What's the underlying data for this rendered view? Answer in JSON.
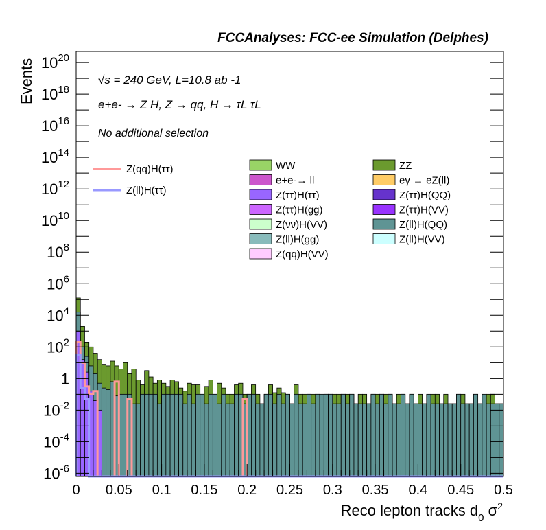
{
  "header": "FCCAnalyses: FCC-ee Simulation (Delphes)",
  "annotations": {
    "energy_lumi": "√s = 240 GeV, L=10.8 ab -1",
    "process": "e+e- → Z H, Z → qq, H → τL τL",
    "selection": "No additional selection"
  },
  "colors": {
    "WW": "#99d466",
    "ZZ": "#6b9a2e",
    "ee_ll": "#cc55cc",
    "egamma": "#ffcc66",
    "ztautau_htautau": "#9966ff",
    "ztautau_hqq": "#6633cc",
    "ztautau_hgg": "#cc66ff",
    "ztautau_hvv": "#9933ff",
    "znunu_hvv": "#ccffcc",
    "zll_hqq": "#5f9494",
    "zll_hgg": "#88bbbb",
    "zll_hvv": "#ccffff",
    "zqq_hvv": "#ffccff",
    "sig_zqq": "#ff9999",
    "sig_zll": "#9999ff"
  },
  "chart_data": {
    "type": "bar",
    "title": "",
    "xlabel": "Reco lepton tracks d0 σ2",
    "ylabel": "Events",
    "xlim": [
      0,
      0.5
    ],
    "ylim_log10": [
      -6.2,
      20.7
    ],
    "yscale": "log",
    "bin_width": 0.005,
    "x_ticks": [
      "0",
      "0.05",
      "0.1",
      "0.15",
      "0.2",
      "0.25",
      "0.3",
      "0.35",
      "0.4",
      "0.45",
      "0.5"
    ],
    "y_ticks": [
      {
        "base": "10",
        "exp": "20",
        "v": 20
      },
      {
        "base": "10",
        "exp": "18",
        "v": 18
      },
      {
        "base": "10",
        "exp": "16",
        "v": 16
      },
      {
        "base": "10",
        "exp": "14",
        "v": 14
      },
      {
        "base": "10",
        "exp": "12",
        "v": 12
      },
      {
        "base": "10",
        "exp": "10",
        "v": 10
      },
      {
        "base": "10",
        "exp": "8",
        "v": 8
      },
      {
        "base": "10",
        "exp": "6",
        "v": 6
      },
      {
        "base": "10",
        "exp": "4",
        "v": 4
      },
      {
        "base": "10",
        "exp": "2",
        "v": 2
      },
      {
        "base": "1",
        "exp": "",
        "v": 0
      },
      {
        "base": "10",
        "exp": "-2",
        "v": -2
      },
      {
        "base": "10",
        "exp": "-4",
        "v": -4
      },
      {
        "base": "10",
        "exp": "-6",
        "v": -6
      }
    ],
    "legend_background": [
      {
        "label": "WW",
        "color_key": "WW"
      },
      {
        "label": "ZZ",
        "color_key": "ZZ"
      },
      {
        "label": "e+e-→ ll",
        "color_key": "ee_ll"
      },
      {
        "label": "eγ → eZ(ll)",
        "color_key": "egamma"
      },
      {
        "label": "Z(ττ)H(ττ)",
        "color_key": "ztautau_htautau"
      },
      {
        "label": "Z(ττ)H(QQ)",
        "color_key": "ztautau_hqq"
      },
      {
        "label": "Z(ττ)H(gg)",
        "color_key": "ztautau_hgg"
      },
      {
        "label": "Z(ττ)H(VV)",
        "color_key": "ztautau_hvv"
      },
      {
        "label": "Z(νν)H(VV)",
        "color_key": "znunu_hvv"
      },
      {
        "label": "Z(ll)H(QQ)",
        "color_key": "zll_hqq"
      },
      {
        "label": "Z(ll)H(gg)",
        "color_key": "zll_hgg"
      },
      {
        "label": "Z(ll)H(VV)",
        "color_key": "zll_hvv"
      },
      {
        "label": "Z(qq)H(VV)",
        "color_key": "zqq_hvv"
      }
    ],
    "legend_signal": [
      {
        "label": "Z(qq)H(ττ)",
        "color_key": "sig_zqq"
      },
      {
        "label": "Z(ll)H(ττ)",
        "color_key": "sig_zll"
      }
    ],
    "stack_total_log10": [
      5.1,
      3.3,
      2.3,
      2.0,
      1.6,
      1.2,
      0.9,
      0.8,
      1.1,
      0.8,
      0.6,
      1.0,
      0.3,
      0.6,
      -0.1,
      -0.4,
      0.5,
      0.1,
      -0.3,
      -0.1,
      -0.3,
      -0.5,
      -0.1,
      -0.2,
      -0.6,
      -0.8,
      -0.3,
      -0.4,
      -0.4,
      -1.0,
      -0.5,
      -0.1,
      -1.0,
      -0.3,
      -0.6,
      -1.0,
      -1.0,
      -0.4,
      -0.3,
      -1.0,
      -1.0,
      -0.4,
      -1.0,
      -1.6,
      -1.0,
      -0.4,
      -0.9,
      -0.6,
      -0.9,
      -1.0,
      -1.6,
      -0.4,
      -1.0,
      -1.0,
      -1.0,
      -1.0,
      -1.0,
      -1.6,
      -1.0,
      -1.0,
      -1.0,
      -1.0,
      -1.0,
      -1.0,
      -1.0,
      -1.6,
      -1.0,
      -1.0,
      -1.6,
      -1.0,
      -1.0,
      -1.0,
      -1.0,
      -1.0,
      -1.6,
      -1.0,
      -1.0,
      -1.6,
      -1.0,
      -1.6,
      -1.0,
      -1.6,
      -1.6,
      -1.0,
      -1.0,
      -1.6,
      -1.0,
      -1.6,
      -1.6,
      -1.0,
      -1.0,
      -1.6,
      -1.6,
      -1.0,
      -1.6,
      -1.6,
      -1.0,
      -1.0,
      -1.6,
      -1.6
    ],
    "zll_hqq_log10": [
      4.2,
      2.0,
      1.4,
      0.8,
      0.3,
      -0.3,
      -0.6,
      -0.7,
      -0.2,
      -1.1,
      -1.0,
      -1.0,
      -1.0,
      -1.6,
      -1.6,
      -1.0,
      -1.0,
      -1.0,
      -1.0,
      -1.6,
      -1.0,
      -1.0,
      -1.0,
      -1.0,
      -1.0,
      -1.6,
      -1.0,
      -1.6,
      -1.0,
      -1.0,
      -1.6,
      -1.0,
      -1.0,
      -1.6,
      -1.0,
      -1.6,
      -1.6,
      -1.0,
      -1.0,
      -1.6,
      -1.0,
      -1.0,
      -1.6,
      -1.6,
      -1.0,
      -1.0,
      -1.6,
      -1.0,
      -1.6,
      -1.0,
      -1.6,
      -1.0,
      -1.6,
      -1.6,
      -1.0,
      -1.6,
      -1.0,
      -1.0,
      -1.0,
      -1.0,
      -1.6,
      -1.6,
      -1.0,
      -1.6,
      -1.0,
      -1.6,
      -1.6,
      -1.6,
      -1.6,
      -1.0,
      -1.6,
      -1.0,
      -1.6,
      -1.0,
      -1.6,
      -1.6,
      -1.0,
      -1.6,
      -1.0,
      -1.6,
      -1.6,
      -1.6,
      -1.0,
      -1.6,
      -1.6,
      -1.6,
      -1.6,
      -1.6,
      -1.6,
      -1.0,
      -1.6,
      -1.6,
      -1.6,
      -1.0,
      -1.6,
      -1.0,
      -1.6,
      -1.6,
      -1.6,
      -1.6
    ],
    "ztautau_log10": [
      3.0,
      1.2,
      0.4,
      -0.8,
      -1.4,
      -2.0,
      -6.3,
      -6.3,
      -6.3,
      -6.3,
      -6.3,
      -6.3,
      -6.3,
      -6.3,
      -6.3,
      -6.3,
      -6.3,
      -6.3,
      -6.3,
      -6.3,
      -6.3,
      -6.3,
      -6.3,
      -6.3,
      -6.3,
      -6.3,
      -6.3,
      -6.3,
      -6.3,
      -6.3,
      -6.3,
      -6.3,
      -6.3,
      -6.3,
      -6.3,
      -6.3,
      -6.3,
      -6.3,
      -6.3,
      -6.3,
      -6.3,
      -6.3,
      -6.3,
      -6.3,
      -6.3,
      -6.3,
      -6.3,
      -6.3,
      -6.3,
      -6.3,
      -6.3,
      -6.3,
      -6.3,
      -6.3,
      -6.3,
      -6.3,
      -6.3,
      -6.3,
      -6.3,
      -6.3,
      -6.3,
      -6.3,
      -6.3,
      -6.3,
      -6.3,
      -6.3,
      -6.3,
      -6.3,
      -6.3,
      -6.3,
      -6.3,
      -6.3,
      -6.3,
      -6.3,
      -6.3,
      -6.3,
      -6.3,
      -6.3,
      -6.3,
      -6.3,
      -6.3,
      -6.3,
      -6.3,
      -6.3,
      -6.3,
      -6.3,
      -6.3,
      -6.3,
      -6.3,
      -6.3,
      -6.3,
      -6.3,
      -6.3,
      -6.3,
      -6.3,
      -6.3,
      -6.3,
      -6.3,
      -6.3,
      -6.3
    ],
    "sig_zqq_log10": [
      2.3,
      1.0,
      -0.5,
      -1.0,
      -0.8,
      -6.3,
      -6.3,
      -6.3,
      -6.3,
      -0.2,
      -6.3,
      -6.3,
      -1.3,
      -6.3,
      -6.3,
      -6.3,
      -6.3,
      -6.3,
      -6.3,
      -6.3,
      -6.3,
      -6.3,
      -6.3,
      -6.3,
      -6.3,
      -6.3,
      -6.3,
      -6.3,
      -6.3,
      -6.3,
      -6.3,
      -6.3,
      -6.3,
      -6.3,
      -6.3,
      -6.3,
      -6.3,
      -6.3,
      -6.3,
      -1.3,
      -6.3,
      -6.3,
      -6.3,
      -6.3,
      -6.3,
      -6.3,
      -6.3,
      -6.3,
      -6.3,
      -6.3,
      -6.3,
      -6.3,
      -6.3,
      -6.3,
      -6.3,
      -6.3,
      -6.3,
      -6.3,
      -6.3,
      -6.3,
      -6.3,
      -6.3,
      -6.3,
      -6.3,
      -6.3,
      -6.3,
      -6.3,
      -6.3,
      -6.3,
      -6.3,
      -6.3,
      -6.3,
      -6.3,
      -6.3,
      -6.3,
      -6.3,
      -6.3,
      -6.3,
      -6.3,
      -6.3,
      -6.3,
      -6.3,
      -6.3,
      -6.3,
      -6.3,
      -6.3,
      -6.3,
      -6.3,
      -6.3,
      -6.3,
      -6.3,
      -6.3,
      -6.3,
      -6.3,
      -6.3,
      -6.3,
      -6.3,
      -6.3,
      -6.3,
      -6.3
    ],
    "sig_zll_log10": [
      1.5,
      -0.6,
      -1.3,
      -6.3,
      -6.3,
      -6.3,
      -6.3,
      -6.3,
      -6.3,
      -6.3,
      -6.3,
      -6.3,
      -6.3,
      -6.3,
      -6.3,
      -6.3,
      -6.3,
      -6.3,
      -6.3,
      -6.3,
      -6.3,
      -6.3,
      -6.3,
      -6.3,
      -6.3,
      -6.3,
      -6.3,
      -6.3,
      -6.3,
      -6.3,
      -6.3,
      -6.3,
      -6.3,
      -6.3,
      -6.3,
      -6.3,
      -6.3,
      -6.3,
      -6.3,
      -6.3,
      -6.3,
      -6.3,
      -6.3,
      -6.3,
      -6.3,
      -6.3,
      -6.3,
      -6.3,
      -6.3,
      -6.3,
      -6.3,
      -6.3,
      -6.3,
      -6.3,
      -6.3,
      -6.3,
      -6.3,
      -6.3,
      -6.3,
      -6.3,
      -6.3,
      -6.3,
      -6.3,
      -6.3,
      -6.3,
      -6.3,
      -6.3,
      -6.3,
      -6.3,
      -6.3,
      -6.3,
      -6.3,
      -6.3,
      -6.3,
      -6.3,
      -6.3,
      -6.3,
      -6.3,
      -6.3,
      -6.3,
      -6.3,
      -6.3,
      -6.3,
      -6.3,
      -6.3,
      -6.3,
      -6.3,
      -6.3,
      -6.3,
      -6.3,
      -6.3,
      -6.3,
      -6.3,
      -6.3,
      -6.3,
      -6.3,
      -6.3,
      -6.3,
      -6.3,
      -6.3
    ]
  }
}
